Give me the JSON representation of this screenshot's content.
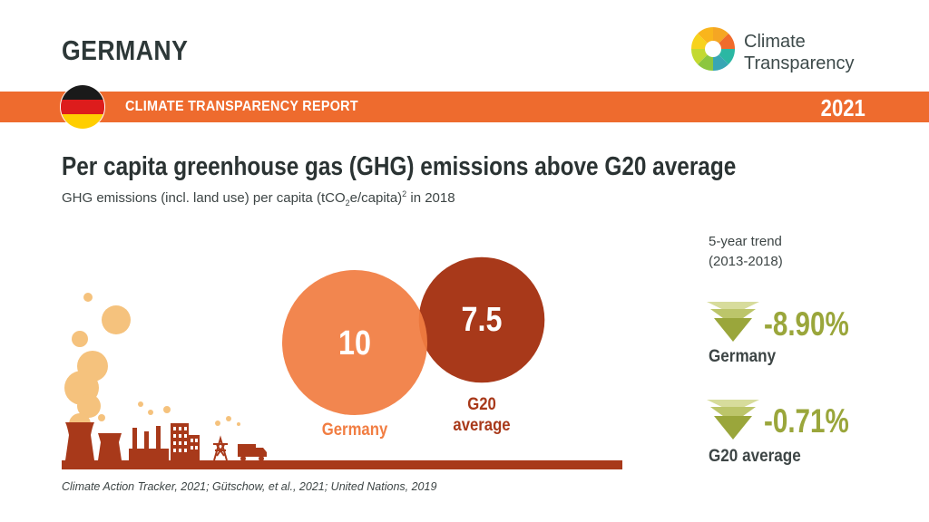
{
  "header": {
    "country": "GERMANY",
    "logo_line1": "Climate",
    "logo_line2": "Transparency",
    "report_title": "CLIMATE TRANSPARENCY REPORT",
    "year": "2021"
  },
  "chart_data": {
    "type": "bubble",
    "title": "Per capita greenhouse gas (GHG) emissions above G20 average",
    "subtitle_pre": "GHG emissions (incl. land use) per capita (tCO",
    "subtitle_sub": "2",
    "subtitle_mid": "e/capita)",
    "subtitle_sup": "2",
    "subtitle_post": " in 2018",
    "series": [
      {
        "name": "Germany",
        "value": 10,
        "value_label": "10",
        "color": "#f17d42"
      },
      {
        "name": "G20 average",
        "value": 7.5,
        "value_label": "7.5",
        "color": "#a8391a"
      }
    ],
    "g20_label_line1": "G20",
    "g20_label_line2": "average"
  },
  "trend": {
    "title_line1": "5-year trend",
    "title_line2": "(2013-2018)",
    "items": [
      {
        "name": "Germany",
        "change": "-8.90%"
      },
      {
        "name": "G20 average",
        "change": "-0.71%"
      }
    ],
    "color": "#9aa63b"
  },
  "source": "Climate Action Tracker, 2021; Gütschow, et al., 2021; United Nations, 2019"
}
